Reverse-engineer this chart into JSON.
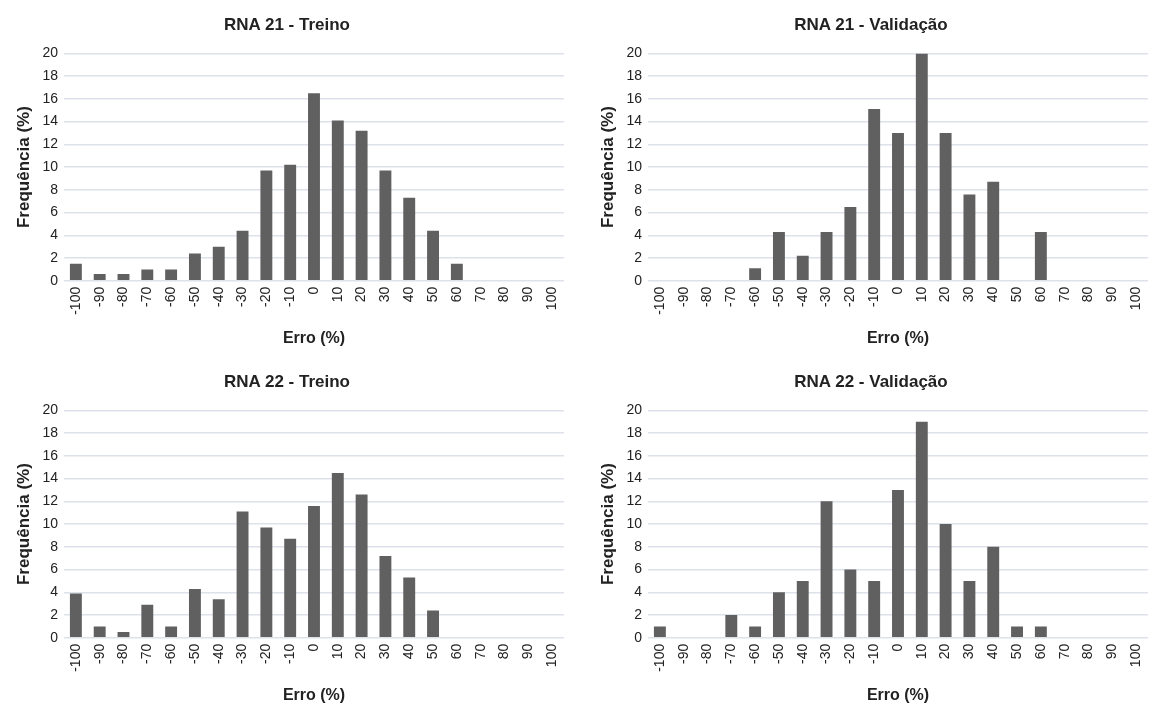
{
  "chart_data": [
    {
      "type": "bar",
      "title": "RNA 21 - Treino",
      "xlabel": "Erro (%)",
      "ylabel": "Frequência (%)",
      "categories": [
        "-100",
        "-90",
        "-80",
        "-70",
        "-60",
        "-50",
        "-40",
        "-30",
        "-20",
        "-10",
        "0",
        "10",
        "20",
        "30",
        "40",
        "50",
        "60",
        "70",
        "80",
        "90",
        "100"
      ],
      "values": [
        1.5,
        0.6,
        0.6,
        1.0,
        1.0,
        2.4,
        3.0,
        4.4,
        9.7,
        10.2,
        16.5,
        14.1,
        13.2,
        9.7,
        7.3,
        4.4,
        1.5,
        0,
        0,
        0,
        0
      ],
      "color": "#606060",
      "ylim": [
        0,
        20
      ],
      "yticks": [
        0,
        2,
        4,
        6,
        8,
        10,
        12,
        14,
        16,
        18,
        20
      ],
      "grid": "y"
    },
    {
      "type": "bar",
      "title": "RNA 21 - Validação",
      "xlabel": "Erro (%)",
      "ylabel": "Frequência (%)",
      "categories": [
        "-100",
        "-90",
        "-80",
        "-70",
        "-60",
        "-50",
        "-40",
        "-30",
        "-20",
        "-10",
        "0",
        "10",
        "20",
        "30",
        "40",
        "50",
        "60",
        "70",
        "80",
        "90",
        "100"
      ],
      "values": [
        0,
        0,
        0,
        0,
        1.1,
        4.3,
        2.2,
        4.3,
        6.5,
        15.1,
        13.0,
        20.0,
        13.0,
        7.6,
        8.7,
        0,
        4.3,
        0,
        0,
        0,
        0
      ],
      "color": "#606060",
      "ylim": [
        0,
        20
      ],
      "yticks": [
        0,
        2,
        4,
        6,
        8,
        10,
        12,
        14,
        16,
        18,
        20
      ],
      "grid": "y"
    },
    {
      "type": "bar",
      "title": "RNA 22 - Treino",
      "xlabel": "Erro (%)",
      "ylabel": "Frequência (%)",
      "categories": [
        "-100",
        "-90",
        "-80",
        "-70",
        "-60",
        "-50",
        "-40",
        "-30",
        "-20",
        "-10",
        "0",
        "10",
        "20",
        "30",
        "40",
        "50",
        "60",
        "70",
        "80",
        "90",
        "100"
      ],
      "values": [
        3.9,
        1.0,
        0.5,
        2.9,
        1.0,
        4.3,
        3.4,
        11.1,
        9.7,
        8.7,
        11.6,
        14.5,
        12.6,
        7.2,
        5.3,
        2.4,
        0,
        0,
        0,
        0,
        0
      ],
      "color": "#606060",
      "ylim": [
        0,
        20
      ],
      "yticks": [
        0,
        2,
        4,
        6,
        8,
        10,
        12,
        14,
        16,
        18,
        20
      ],
      "grid": "y"
    },
    {
      "type": "bar",
      "title": "RNA 22 - Validação",
      "xlabel": "Erro (%)",
      "ylabel": "Frequência (%)",
      "categories": [
        "-100",
        "-90",
        "-80",
        "-70",
        "-60",
        "-50",
        "-40",
        "-30",
        "-20",
        "-10",
        "0",
        "10",
        "20",
        "30",
        "40",
        "50",
        "60",
        "70",
        "80",
        "90",
        "100"
      ],
      "values": [
        1,
        0,
        0,
        2,
        1,
        4,
        5,
        12,
        6,
        5,
        13,
        19,
        10,
        5,
        8,
        1,
        1,
        0,
        0,
        0,
        0
      ],
      "color": "#606060",
      "ylim": [
        0,
        20
      ],
      "yticks": [
        0,
        2,
        4,
        6,
        8,
        10,
        12,
        14,
        16,
        18,
        20
      ],
      "grid": "y"
    }
  ]
}
